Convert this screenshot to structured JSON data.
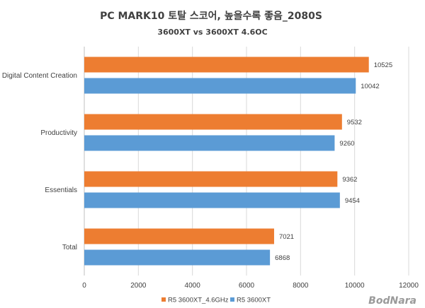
{
  "chart_data": {
    "type": "bar",
    "orientation": "horizontal",
    "title": "PC MARK10 토탈 스코어, 높을수록 좋음_2080S",
    "subtitle": "3600XT vs 3600XT 4.6OC",
    "categories": [
      "Digital Content Creation",
      "Productivity",
      "Essentials",
      "Total"
    ],
    "series": [
      {
        "name": "R5 3600XT_4.6GHz",
        "color": "#ED7D31",
        "values": [
          10525,
          9532,
          9362,
          7021
        ]
      },
      {
        "name": "R5 3600XT",
        "color": "#5B9BD5",
        "values": [
          10042,
          9260,
          9454,
          6868
        ]
      }
    ],
    "xlim": [
      0,
      12000
    ],
    "xticks": [
      0,
      2000,
      4000,
      6000,
      8000,
      10000,
      12000
    ],
    "grid": "vertical",
    "legend_position": "bottom"
  },
  "watermark": "BodNara"
}
